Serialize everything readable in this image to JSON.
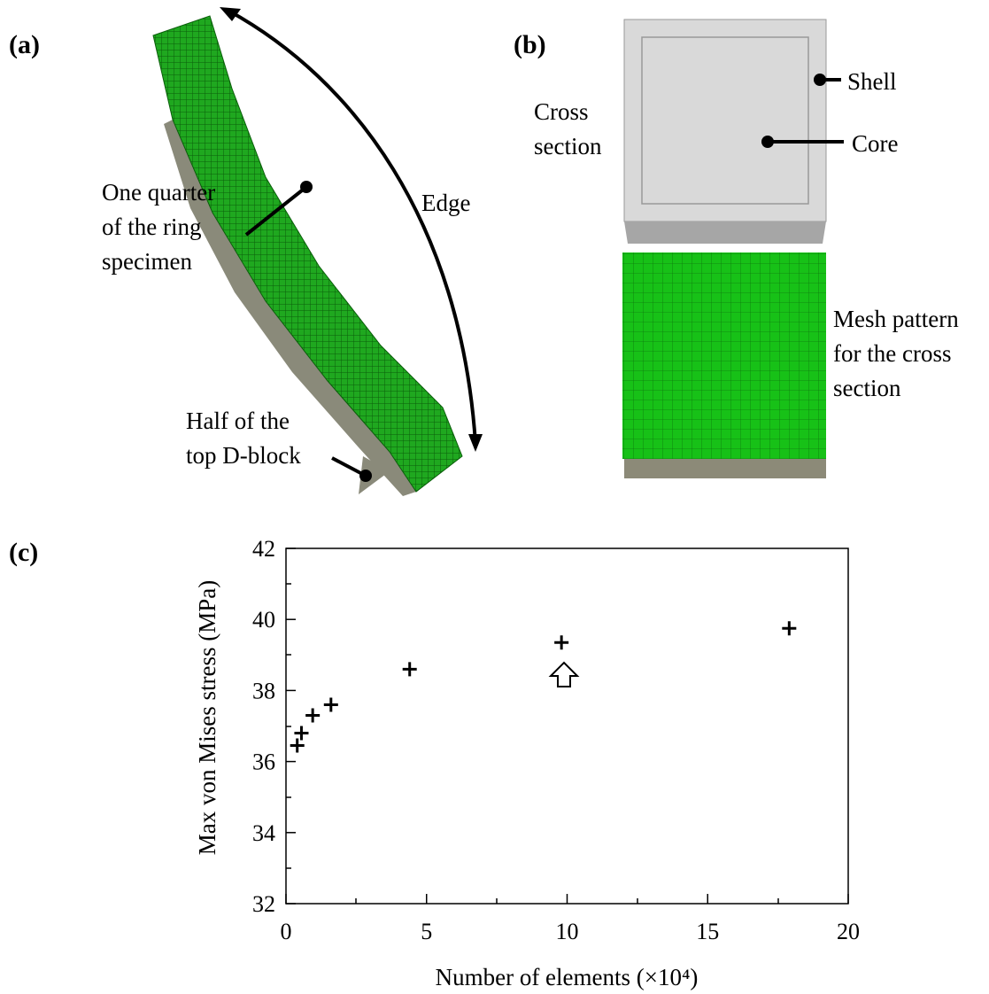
{
  "panels": {
    "a": {
      "label": "(a)",
      "quarter": [
        "One quarter",
        "of the ring",
        "specimen"
      ],
      "edge": "Edge",
      "dblock": [
        "Half of the",
        "top D-block"
      ]
    },
    "b": {
      "label": "(b)",
      "cross": [
        "Cross",
        "section"
      ],
      "shell": "Shell",
      "core": "Core",
      "mesh": [
        "Mesh pattern",
        "for the cross",
        "section"
      ]
    }
  },
  "chart_data": {
    "type": "scatter",
    "label": "(c)",
    "xlabel": "Number of elements (×10⁴)",
    "ylabel": "Max von Mises stress (MPa)",
    "x": [
      0.4,
      0.55,
      0.95,
      1.6,
      4.4,
      9.8,
      17.9
    ],
    "values": [
      36.45,
      36.8,
      37.3,
      37.6,
      38.6,
      39.35,
      39.75
    ],
    "color": "#000000",
    "xlim": [
      0,
      20
    ],
    "xticks": [
      0,
      5,
      10,
      15,
      20
    ],
    "ylim": [
      32,
      42
    ],
    "yticks": [
      32,
      34,
      36,
      38,
      40,
      42
    ]
  }
}
